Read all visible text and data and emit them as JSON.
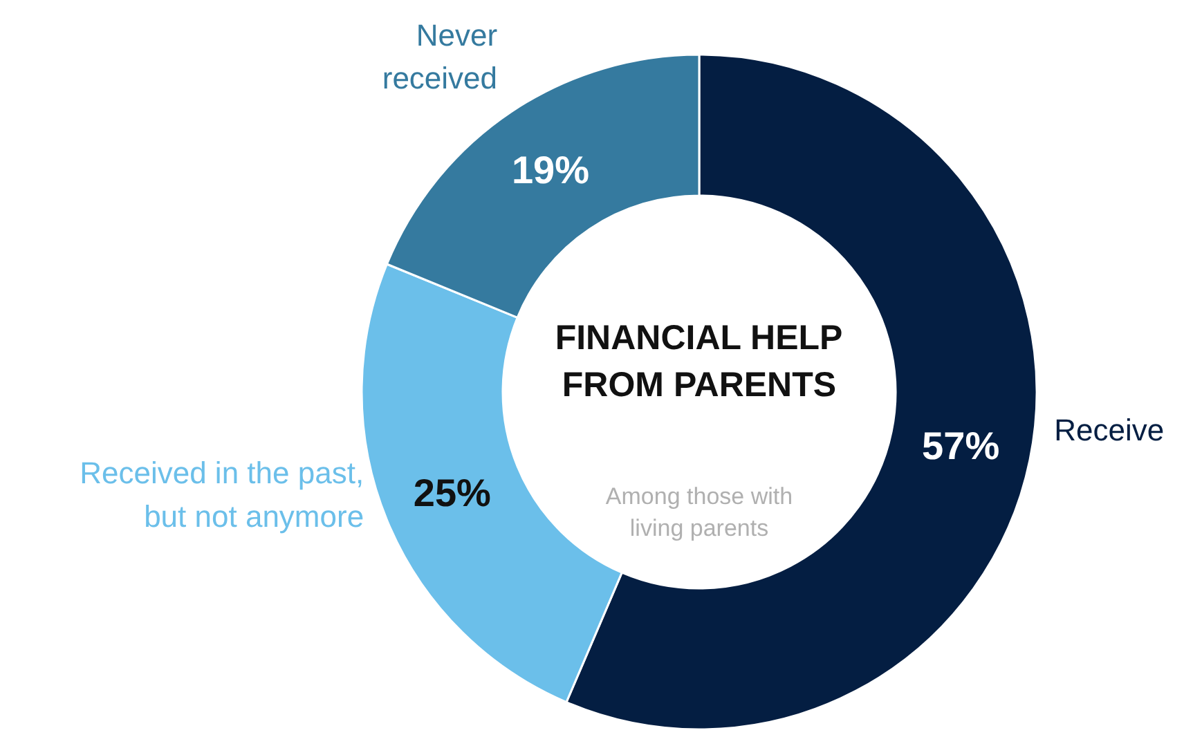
{
  "chart_data": {
    "type": "donut",
    "title": "FINANCIAL HELP\nFROM PARENTS",
    "subtitle": "Among those with\nliving parents",
    "categories": [
      "Receive",
      "Received in the past,\nbut not anymore",
      "Never\nreceived"
    ],
    "values": [
      57,
      25,
      19
    ],
    "colors": [
      "#041e42",
      "#6bbfea",
      "#357a9f"
    ],
    "value_labels": [
      "57%",
      "25%",
      "19%"
    ]
  }
}
